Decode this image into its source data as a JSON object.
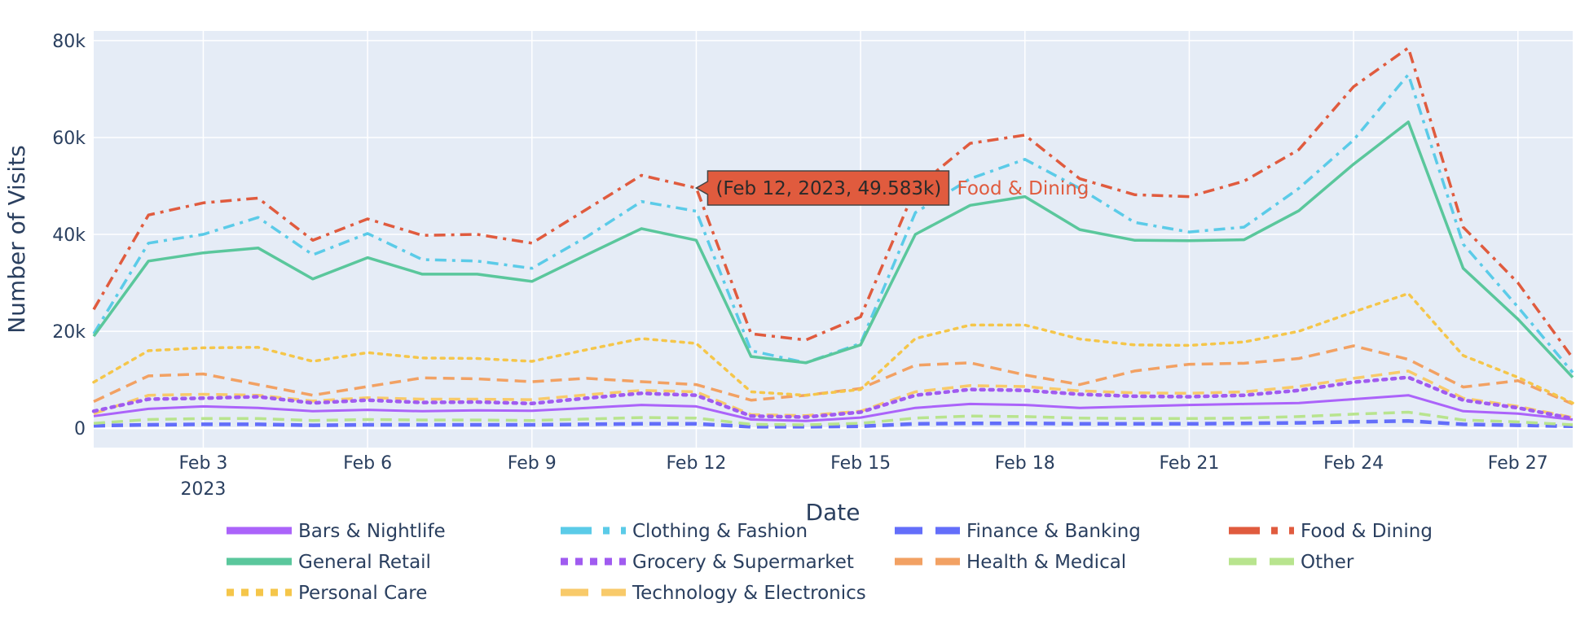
{
  "chart_data": {
    "type": "line",
    "title": "",
    "xlabel": "Date",
    "ylabel": "Number of Visits",
    "x_tick_labels": [
      "Feb 3",
      "Feb 6",
      "Feb 9",
      "Feb 12",
      "Feb 15",
      "Feb 18",
      "Feb 21",
      "Feb 24",
      "Feb 27"
    ],
    "x_tick_dates": [
      "2023-02-03",
      "2023-02-06",
      "2023-02-09",
      "2023-02-12",
      "2023-02-15",
      "2023-02-18",
      "2023-02-21",
      "2023-02-24",
      "2023-02-27"
    ],
    "x_year_label": "2023",
    "xlim": [
      "2023-02-01",
      "2023-02-28"
    ],
    "y_ticks": [
      0,
      20000,
      40000,
      60000,
      80000
    ],
    "y_tick_labels": [
      "0",
      "20k",
      "40k",
      "60k",
      "80k"
    ],
    "ylim": [
      -4000,
      82000
    ],
    "grid": true,
    "legend_position": "bottom",
    "x": [
      "2023-02-01",
      "2023-02-02",
      "2023-02-03",
      "2023-02-04",
      "2023-02-05",
      "2023-02-06",
      "2023-02-07",
      "2023-02-08",
      "2023-02-09",
      "2023-02-10",
      "2023-02-11",
      "2023-02-12",
      "2023-02-13",
      "2023-02-14",
      "2023-02-15",
      "2023-02-16",
      "2023-02-17",
      "2023-02-18",
      "2023-02-19",
      "2023-02-20",
      "2023-02-21",
      "2023-02-22",
      "2023-02-23",
      "2023-02-24",
      "2023-02-25",
      "2023-02-26",
      "2023-02-27",
      "2023-02-28"
    ],
    "series": [
      {
        "name": "Bars & Nightlife",
        "color": "#ab63fa",
        "dash": "solid",
        "width": 3,
        "values": [
          2500,
          4000,
          4500,
          4200,
          3500,
          3800,
          3500,
          3700,
          3600,
          4200,
          4800,
          4500,
          1800,
          1500,
          2200,
          4200,
          5000,
          4800,
          4200,
          4500,
          4800,
          5000,
          5200,
          6000,
          6800,
          3500,
          3000,
          1800
        ]
      },
      {
        "name": "Clothing & Fashion",
        "color": "#5bcbe8",
        "dash": "dashdot",
        "width": 3.5,
        "values": [
          19500,
          38200,
          40000,
          43500,
          35800,
          40200,
          34800,
          34500,
          33000,
          39500,
          46800,
          44800,
          16000,
          13500,
          17500,
          44500,
          51500,
          55500,
          49500,
          42500,
          40500,
          41500,
          49500,
          59500,
          73000,
          38000,
          25000,
          11500
        ]
      },
      {
        "name": "Finance & Banking",
        "color": "#636efa",
        "dash": "dash",
        "width": 4.5,
        "values": [
          500,
          700,
          800,
          800,
          600,
          700,
          700,
          700,
          700,
          800,
          900,
          900,
          300,
          300,
          400,
          900,
          1000,
          1000,
          900,
          900,
          900,
          1000,
          1100,
          1300,
          1500,
          800,
          600,
          400
        ]
      },
      {
        "name": "Food & Dining",
        "color": "#e05b3e",
        "dash": "dashdot",
        "width": 3.5,
        "values": [
          24500,
          44000,
          46500,
          47500,
          38800,
          43200,
          39800,
          40000,
          38200,
          45200,
          52200,
          49583,
          19500,
          18200,
          23000,
          49500,
          58800,
          60500,
          51500,
          48200,
          47800,
          51000,
          57500,
          70500,
          78500,
          41500,
          30000,
          14500
        ]
      },
      {
        "name": "General Retail",
        "color": "#5ac79c",
        "dash": "solid",
        "width": 3.5,
        "values": [
          19000,
          34500,
          36200,
          37200,
          30800,
          35200,
          31800,
          31800,
          30300,
          35800,
          41200,
          38800,
          14800,
          13500,
          17200,
          40000,
          46000,
          47800,
          41000,
          38800,
          38700,
          38900,
          44900,
          54500,
          63200,
          33000,
          22500,
          10500
        ]
      },
      {
        "name": "Grocery & Supermarket",
        "color": "#a05bf0",
        "dash": "dot",
        "width": 4.5,
        "values": [
          3500,
          6000,
          6200,
          6500,
          5200,
          5800,
          5300,
          5400,
          5100,
          6200,
          7200,
          6800,
          2500,
          2300,
          3300,
          6800,
          8000,
          7800,
          7000,
          6600,
          6500,
          6800,
          7800,
          9500,
          10500,
          5800,
          4200,
          2000
        ]
      },
      {
        "name": "Health & Medical",
        "color": "#f2a163",
        "dash": "dash",
        "width": 3.5,
        "values": [
          5500,
          10800,
          11200,
          9000,
          6800,
          8600,
          10400,
          10200,
          9600,
          10300,
          9600,
          9000,
          5800,
          6800,
          8200,
          13000,
          13500,
          11000,
          9000,
          11800,
          13200,
          13400,
          14400,
          17000,
          14200,
          8500,
          9800,
          5000
        ]
      },
      {
        "name": "Other",
        "color": "#b8e48e",
        "dash": "dash",
        "width": 3.5,
        "values": [
          1000,
          1800,
          2000,
          2000,
          1600,
          1800,
          1700,
          1700,
          1600,
          1900,
          2200,
          2100,
          800,
          700,
          1000,
          2100,
          2500,
          2400,
          2100,
          2000,
          2000,
          2100,
          2400,
          2900,
          3300,
          1700,
          1300,
          700
        ]
      },
      {
        "name": "Personal Care",
        "color": "#f5c64a",
        "dash": "dot",
        "width": 3.5,
        "values": [
          9500,
          16000,
          16600,
          16700,
          13800,
          15600,
          14500,
          14400,
          13800,
          16200,
          18500,
          17500,
          7500,
          6800,
          8000,
          18500,
          21300,
          21300,
          18400,
          17200,
          17100,
          17800,
          20000,
          24000,
          27800,
          15000,
          10500,
          5200
        ]
      },
      {
        "name": "Technology & Electronics",
        "color": "#f8ca6a",
        "dash": "dash",
        "width": 3.5,
        "values": [
          3000,
          6800,
          7000,
          6800,
          5600,
          6300,
          6000,
          6000,
          5900,
          6900,
          7800,
          7500,
          2800,
          2600,
          3500,
          7500,
          8800,
          8600,
          7700,
          7300,
          7200,
          7500,
          8600,
          10300,
          11800,
          6200,
          4500,
          2200
        ]
      }
    ],
    "hover": {
      "series": "Food & Dining",
      "x": "2023-02-12",
      "y": 49583,
      "label": "(Feb 12, 2023, 49.583k)",
      "name": "Food & Dining"
    }
  }
}
